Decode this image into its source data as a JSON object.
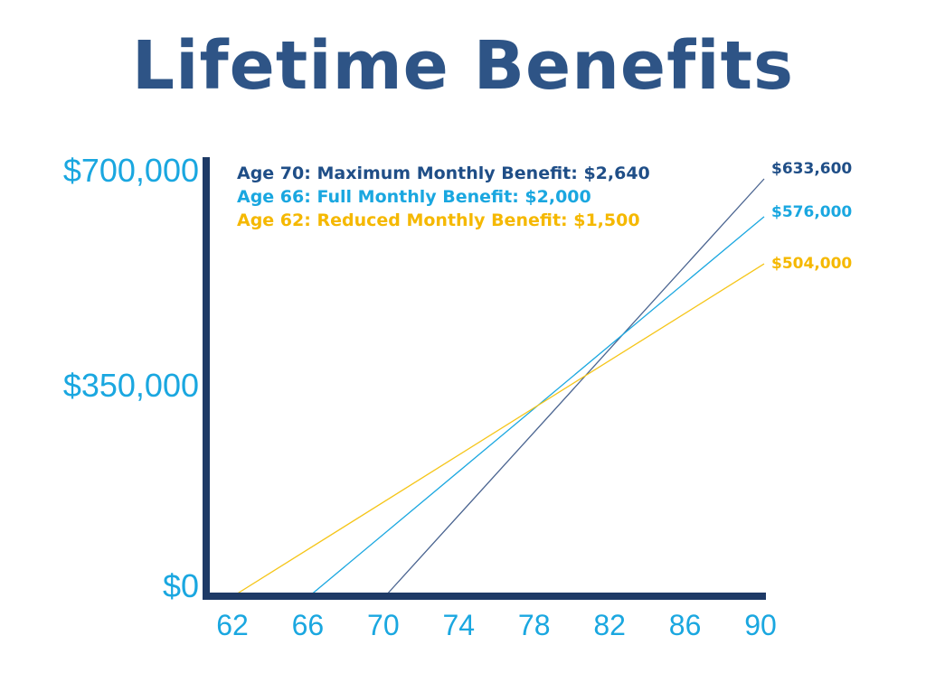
{
  "chart_data": {
    "type": "line",
    "title": "Lifetime Benefits",
    "xlabel": "",
    "ylabel": "",
    "x_ticks": [
      "62",
      "66",
      "70",
      "74",
      "78",
      "82",
      "86",
      "90"
    ],
    "y_ticks": [
      "$700,000",
      "$350,000",
      "$0"
    ],
    "xlim": [
      62,
      90
    ],
    "ylim": [
      0,
      700000
    ],
    "grid": false,
    "legend_position": "top-left",
    "series": [
      {
        "name": "Age 70: Maximum Monthly Benefit: $2,640",
        "color": "#4a6490",
        "label_color": "#1f4e87",
        "x": [
          70,
          90
        ],
        "y": [
          0,
          633600
        ],
        "end_label": "$633,600"
      },
      {
        "name": "Age 66: Full Monthly Benefit: $2,000",
        "color": "#1aa7e0",
        "label_color": "#1aa7e0",
        "x": [
          66,
          90
        ],
        "y": [
          0,
          576000
        ],
        "end_label": "$576,000"
      },
      {
        "name": "Age 62: Reduced Monthly Benefit: $1,500",
        "color": "#f5c518",
        "label_color": "#f5b800",
        "x": [
          62,
          90
        ],
        "y": [
          0,
          504000
        ],
        "end_label": "$504,000"
      }
    ],
    "axis_color": "#1e3a66"
  }
}
